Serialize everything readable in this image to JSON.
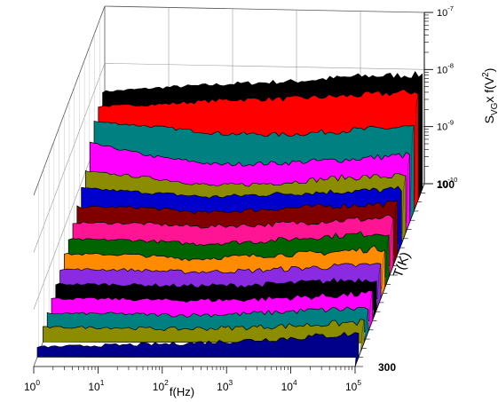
{
  "chart_data": {
    "type": "area",
    "style": "3D waterfall of stacked noise spectra",
    "x_axis": {
      "label": "f(Hz)",
      "scale": "log",
      "range": [
        1,
        100000
      ],
      "ticks": [
        {
          "base": "10",
          "exp": "0"
        },
        {
          "base": "10",
          "exp": "1"
        },
        {
          "base": "10",
          "exp": "2"
        },
        {
          "base": "10",
          "exp": "3"
        },
        {
          "base": "10",
          "exp": "4"
        },
        {
          "base": "10",
          "exp": "5"
        }
      ]
    },
    "y_axis": {
      "label": "T(K)",
      "range": [
        100,
        300
      ],
      "ticks": [
        "100",
        "300"
      ]
    },
    "z_axis": {
      "label_main": "S",
      "label_sub": "VG",
      "label_rest": "x f(V",
      "label_sup": "2",
      "label_close": ")",
      "scale": "log",
      "range": [
        1e-10,
        1e-07
      ],
      "ticks": [
        {
          "base": "10",
          "exp": "-10"
        },
        {
          "base": "10",
          "exp": "-9"
        },
        {
          "base": "10",
          "exp": "-8"
        },
        {
          "base": "10",
          "exp": "-7"
        }
      ]
    },
    "grid": true,
    "legend": "none",
    "series_colors": [
      "#000000",
      "#ff0000",
      "#0000cc",
      "#008080",
      "#ff00ff",
      "#8c8c00",
      "#00008b",
      "#800000",
      "#ff1493",
      "#006400",
      "#ff8c00",
      "#8a2be2",
      "#cc0000",
      "#228b22",
      "#9932cc",
      "#b8860b",
      "#1e90ff",
      "#4b0082"
    ],
    "series": [
      {
        "T": 106,
        "color": "#000000",
        "values": [
          [
            1,
            4e-09
          ],
          [
            10,
            5e-09
          ],
          [
            100,
            6e-09
          ],
          [
            1000,
            7e-09
          ],
          [
            10000,
            9e-09
          ],
          [
            100000,
            1e-08
          ]
        ]
      },
      {
        "T": 118,
        "color": "#ff0000",
        "values": [
          [
            1,
            3.5e-09
          ],
          [
            10,
            4e-09
          ],
          [
            100,
            5e-09
          ],
          [
            1000,
            5.5e-09
          ],
          [
            10000,
            6.5e-09
          ],
          [
            100000,
            8e-09
          ]
        ]
      },
      {
        "T": 130,
        "color": "#008080",
        "values": [
          [
            1,
            3e-09
          ],
          [
            10,
            2.5e-09
          ],
          [
            100,
            2e-09
          ],
          [
            1000,
            2e-09
          ],
          [
            10000,
            2.5e-09
          ],
          [
            100000,
            3e-09
          ]
        ]
      },
      {
        "T": 142,
        "color": "#ff00ff",
        "values": [
          [
            1,
            2e-09
          ],
          [
            10,
            1.2e-09
          ],
          [
            100,
            9e-10
          ],
          [
            1000,
            1e-09
          ],
          [
            10000,
            1.2e-09
          ],
          [
            100000,
            1.5e-09
          ]
        ]
      },
      {
        "T": 154,
        "color": "#8c8c00",
        "values": [
          [
            1,
            1e-09
          ],
          [
            10,
            8e-10
          ],
          [
            100,
            6e-10
          ],
          [
            1000,
            7e-10
          ],
          [
            10000,
            9e-10
          ],
          [
            100000,
            1e-09
          ]
        ]
      },
      {
        "T": 166,
        "color": "#0000cc",
        "values": [
          [
            1,
            8e-10
          ],
          [
            10,
            7e-10
          ],
          [
            100,
            6e-10
          ],
          [
            1000,
            7e-10
          ],
          [
            10000,
            8e-10
          ],
          [
            100000,
            9e-10
          ]
        ]
      },
      {
        "T": 178,
        "color": "#800000",
        "values": [
          [
            1,
            6e-10
          ],
          [
            10,
            6e-10
          ],
          [
            100,
            5e-10
          ],
          [
            1000,
            6e-10
          ],
          [
            10000,
            7e-10
          ],
          [
            100000,
            8e-10
          ]
        ]
      },
      {
        "T": 190,
        "color": "#ff1493",
        "values": [
          [
            1,
            5e-10
          ],
          [
            10,
            5e-10
          ],
          [
            100,
            4.5e-10
          ],
          [
            1000,
            5e-10
          ],
          [
            10000,
            6e-10
          ],
          [
            100000,
            7e-10
          ]
        ]
      },
      {
        "T": 202,
        "color": "#006400",
        "values": [
          [
            1,
            4e-10
          ],
          [
            10,
            4e-10
          ],
          [
            100,
            3.5e-10
          ],
          [
            1000,
            4e-10
          ],
          [
            10000,
            5e-10
          ],
          [
            100000,
            6e-10
          ]
        ]
      },
      {
        "T": 214,
        "color": "#ff8c00",
        "values": [
          [
            1,
            3.5e-10
          ],
          [
            10,
            3.5e-10
          ],
          [
            100,
            3e-10
          ],
          [
            1000,
            3.5e-10
          ],
          [
            10000,
            4e-10
          ],
          [
            100000,
            5e-10
          ]
        ]
      },
      {
        "T": 226,
        "color": "#8a2be2",
        "values": [
          [
            1,
            3e-10
          ],
          [
            10,
            3e-10
          ],
          [
            100,
            2.8e-10
          ],
          [
            1000,
            3e-10
          ],
          [
            10000,
            3.5e-10
          ],
          [
            100000,
            4e-10
          ]
        ]
      },
      {
        "T": 238,
        "color": "#000000",
        "values": [
          [
            1,
            2.6e-10
          ],
          [
            10,
            2.6e-10
          ],
          [
            100,
            2.5e-10
          ],
          [
            1000,
            2.6e-10
          ],
          [
            10000,
            3e-10
          ],
          [
            100000,
            3.5e-10
          ]
        ]
      },
      {
        "T": 250,
        "color": "#ff00ff",
        "values": [
          [
            1,
            2.3e-10
          ],
          [
            10,
            2.3e-10
          ],
          [
            100,
            2.2e-10
          ],
          [
            1000,
            2.3e-10
          ],
          [
            10000,
            2.6e-10
          ],
          [
            100000,
            3e-10
          ]
        ]
      },
      {
        "T": 262,
        "color": "#008080",
        "values": [
          [
            1,
            2e-10
          ],
          [
            10,
            2e-10
          ],
          [
            100,
            1.9e-10
          ],
          [
            1000,
            2e-10
          ],
          [
            10000,
            2.3e-10
          ],
          [
            100000,
            2.6e-10
          ]
        ]
      },
      {
        "T": 274,
        "color": "#8c8c00",
        "values": [
          [
            1,
            1.8e-10
          ],
          [
            10,
            1.8e-10
          ],
          [
            100,
            1.7e-10
          ],
          [
            1000,
            1.8e-10
          ],
          [
            10000,
            2e-10
          ],
          [
            100000,
            2.3e-10
          ]
        ]
      },
      {
        "T": 290,
        "color": "#00008b",
        "values": [
          [
            1,
            1.5e-10
          ],
          [
            10,
            1.6e-10
          ],
          [
            100,
            1.7e-10
          ],
          [
            1000,
            1.9e-10
          ],
          [
            10000,
            2.2e-10
          ],
          [
            100000,
            2.6e-10
          ]
        ]
      }
    ]
  }
}
